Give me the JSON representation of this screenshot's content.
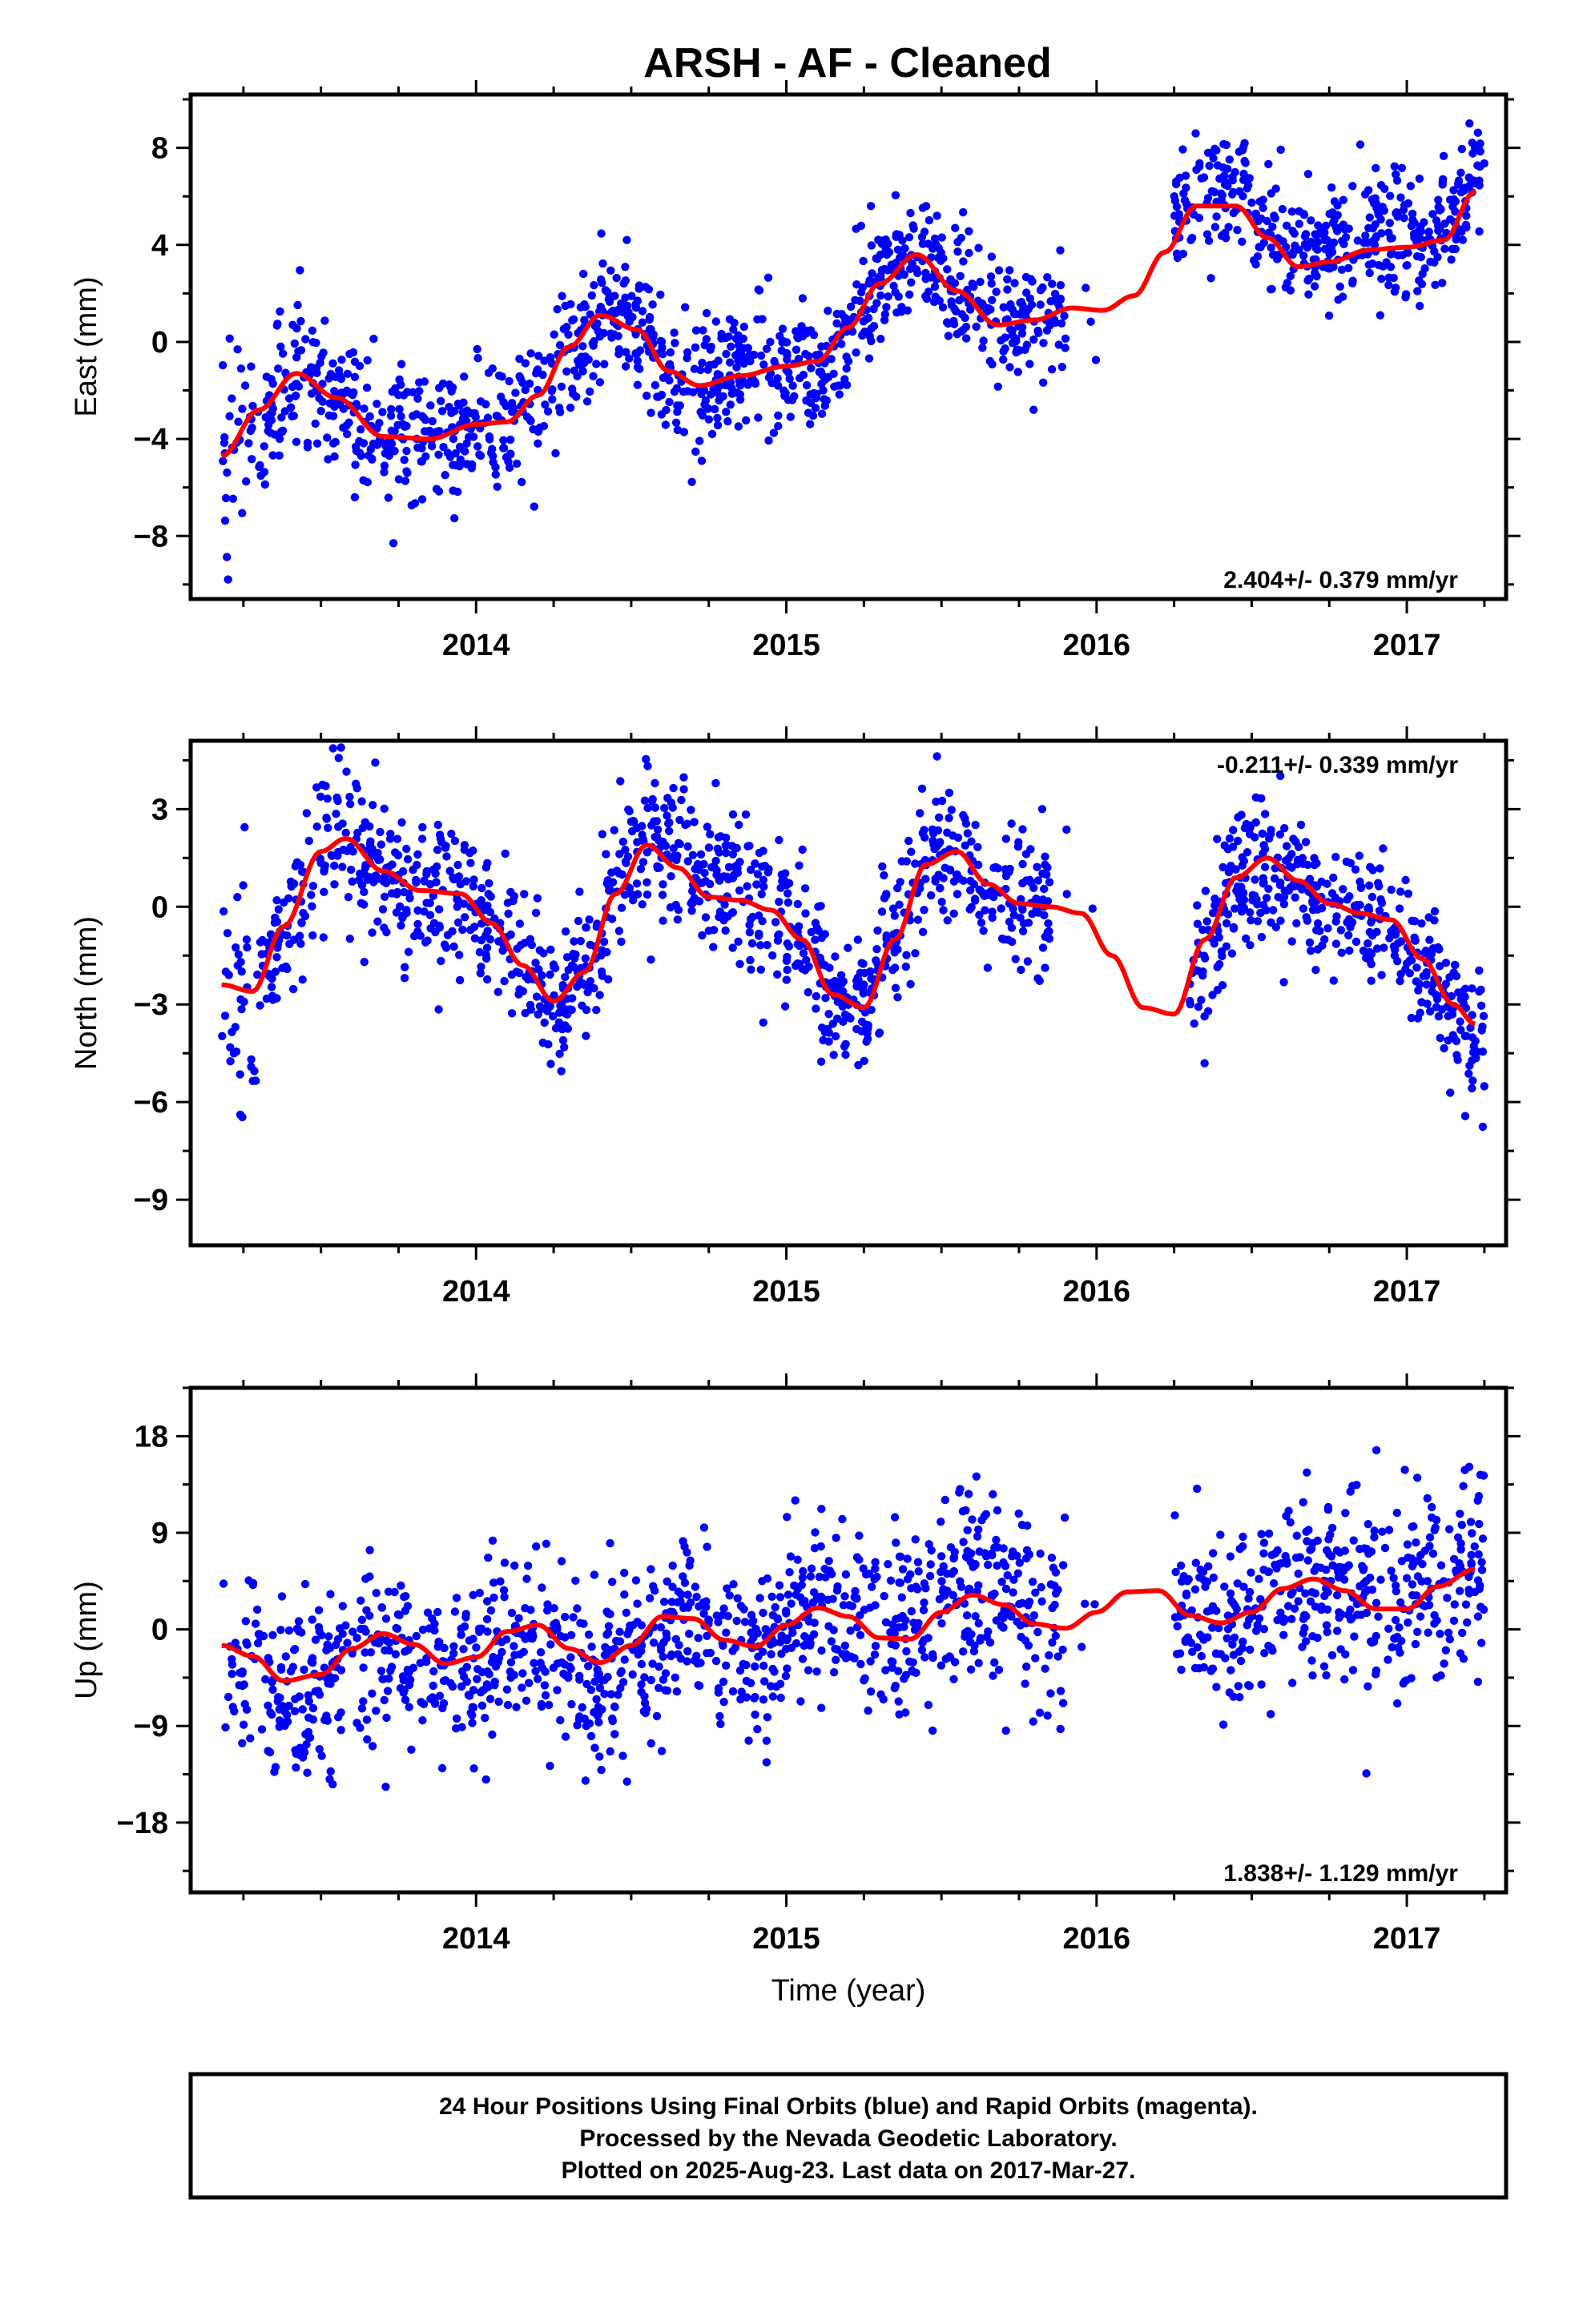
{
  "title": "ARSH  - AF - Cleaned",
  "footer": {
    "lines": [
      "24 Hour Positions Using Final Orbits (blue) and Rapid Orbits (magenta).",
      "Processed by the Nevada Geodetic Laboratory.",
      "Plotted on 2025-Aug-23. Last data on 2017-Mar-27."
    ]
  },
  "colors": {
    "points": "#0000ff",
    "fit": "#ff0000",
    "axis": "#000000",
    "background": "#ffffff"
  },
  "chart_data": [
    {
      "type": "scatter",
      "name": "east",
      "ylabel": "East (mm)",
      "xlabel": "",
      "xlim": [
        2013.08,
        2017.32
      ],
      "ylim": [
        -10.6,
        10.2
      ],
      "yticks": [
        -8,
        -4,
        0,
        4,
        8
      ],
      "xticks": [
        2014,
        2015,
        2016,
        2017
      ],
      "rate_text": "2.404+/- 0.379 mm/yr",
      "rate_position": "bottom-right",
      "fit": {
        "x": [
          2013.18,
          2013.3,
          2013.42,
          2013.55,
          2013.7,
          2013.85,
          2014.0,
          2014.1,
          2014.2,
          2014.3,
          2014.4,
          2014.52,
          2014.62,
          2014.72,
          2014.85,
          2015.0,
          2015.1,
          2015.2,
          2015.3,
          2015.42,
          2015.55,
          2015.68,
          2015.8,
          2015.92,
          2016.02,
          2016.12,
          2016.22,
          2016.32,
          2016.45,
          2016.55,
          2016.65,
          2016.75,
          2016.88,
          2017.0,
          2017.12,
          2017.22
        ],
        "y": [
          -4.7,
          -2.8,
          -1.3,
          -2.3,
          -3.9,
          -4.0,
          -3.4,
          -3.3,
          -2.2,
          -0.2,
          1.1,
          0.5,
          -1.2,
          -1.8,
          -1.4,
          -1.0,
          -0.8,
          0.6,
          2.4,
          3.6,
          2.1,
          0.7,
          0.9,
          1.4,
          1.3,
          1.9,
          3.7,
          5.6,
          5.6,
          4.3,
          3.1,
          3.3,
          3.8,
          3.9,
          4.2,
          6.2
        ]
      },
      "points": {
        "segments": [
          {
            "x0": 2013.18,
            "x1": 2013.32,
            "n": 40,
            "sd": 2.2,
            "yoff": 0.3
          },
          {
            "x0": 2013.32,
            "x1": 2014.35,
            "n": 420,
            "sd": 1.3,
            "yoff": 0
          },
          {
            "x0": 2014.35,
            "x1": 2015.0,
            "n": 280,
            "sd": 1.4,
            "yoff": 0
          },
          {
            "x0": 2015.0,
            "x1": 2015.9,
            "n": 380,
            "sd": 1.2,
            "yoff": 0
          },
          {
            "x0": 2015.95,
            "x1": 2016.0,
            "n": 3,
            "sd": 1.5,
            "yoff": 0
          },
          {
            "x0": 2016.25,
            "x1": 2017.25,
            "n": 420,
            "sd": 1.3,
            "yoff": 0.6
          }
        ]
      }
    },
    {
      "type": "scatter",
      "name": "north",
      "ylabel": "North (mm)",
      "xlabel": "",
      "xlim": [
        2013.08,
        2017.32
      ],
      "ylim": [
        -10.4,
        5.1
      ],
      "yticks": [
        -9,
        -6,
        -3,
        0,
        3
      ],
      "xticks": [
        2014,
        2015,
        2016,
        2017
      ],
      "rate_text": "-0.211+/- 0.339 mm/yr",
      "rate_position": "top-right",
      "fit": {
        "x": [
          2013.18,
          2013.28,
          2013.38,
          2013.5,
          2013.58,
          2013.7,
          2013.82,
          2013.95,
          2014.05,
          2014.15,
          2014.25,
          2014.35,
          2014.45,
          2014.55,
          2014.65,
          2014.75,
          2014.85,
          2014.95,
          2015.05,
          2015.15,
          2015.25,
          2015.35,
          2015.45,
          2015.55,
          2015.65,
          2015.75,
          2015.85,
          2015.95,
          2016.05,
          2016.15,
          2016.25,
          2016.35,
          2016.45,
          2016.55,
          2016.65,
          2016.75,
          2016.85,
          2016.95,
          2017.05,
          2017.15,
          2017.22
        ],
        "y": [
          -2.4,
          -2.6,
          -0.6,
          1.7,
          2.1,
          1.1,
          0.5,
          0.4,
          -0.5,
          -1.8,
          -2.9,
          -2.0,
          0.4,
          1.9,
          1.2,
          0.3,
          0.2,
          -0.1,
          -1.0,
          -2.7,
          -3.1,
          -1.0,
          1.3,
          1.7,
          0.7,
          0.1,
          0.0,
          -0.2,
          -1.5,
          -3.1,
          -3.3,
          -1.0,
          0.9,
          1.5,
          0.8,
          0.1,
          -0.2,
          -0.4,
          -1.6,
          -3.0,
          -3.6
        ]
      },
      "points": {
        "segments": [
          {
            "x0": 2013.18,
            "x1": 2013.3,
            "n": 35,
            "sd": 2.2,
            "yoff": -0.6
          },
          {
            "x0": 2013.3,
            "x1": 2014.35,
            "n": 420,
            "sd": 1.2,
            "yoff": 0
          },
          {
            "x0": 2014.35,
            "x1": 2015.0,
            "n": 280,
            "sd": 1.2,
            "yoff": 0.3
          },
          {
            "x0": 2015.0,
            "x1": 2015.85,
            "n": 360,
            "sd": 1.1,
            "yoff": 0
          },
          {
            "x0": 2015.9,
            "x1": 2016.0,
            "n": 3,
            "sd": 1.0,
            "yoff": 0
          },
          {
            "x0": 2016.3,
            "x1": 2017.25,
            "n": 420,
            "sd": 1.1,
            "yoff": -0.2
          }
        ]
      }
    },
    {
      "type": "scatter",
      "name": "up",
      "ylabel": "Up (mm)",
      "xlabel": "Time (year)",
      "xlim": [
        2013.08,
        2017.32
      ],
      "ylim": [
        -24.5,
        22.5
      ],
      "yticks": [
        -18,
        -9,
        0,
        9,
        18
      ],
      "xticks": [
        2014,
        2015,
        2016,
        2017
      ],
      "rate_text": "1.838+/- 1.129 mm/yr",
      "rate_position": "bottom-right",
      "fit": {
        "x": [
          2013.18,
          2013.28,
          2013.38,
          2013.5,
          2013.6,
          2013.7,
          2013.8,
          2013.9,
          2014.0,
          2014.1,
          2014.2,
          2014.3,
          2014.4,
          2014.5,
          2014.6,
          2014.7,
          2014.8,
          2014.9,
          2015.0,
          2015.1,
          2015.2,
          2015.3,
          2015.4,
          2015.5,
          2015.6,
          2015.7,
          2015.8,
          2015.9,
          2016.0,
          2016.1,
          2016.2,
          2016.3,
          2016.4,
          2016.5,
          2016.6,
          2016.7,
          2016.8,
          2016.9,
          2017.0,
          2017.1,
          2017.22
        ],
        "y": [
          -1.5,
          -2.5,
          -4.8,
          -4.2,
          -1.8,
          -0.4,
          -1.4,
          -3.2,
          -2.6,
          -0.2,
          0.4,
          -1.8,
          -3.1,
          -1.5,
          1.2,
          1.0,
          -1.0,
          -1.6,
          0.4,
          2.0,
          1.2,
          -0.8,
          -0.9,
          1.6,
          3.2,
          2.3,
          0.5,
          0.1,
          1.6,
          3.5,
          3.6,
          1.3,
          0.6,
          1.6,
          3.8,
          4.7,
          3.6,
          1.9,
          1.9,
          4.0,
          5.6
        ]
      },
      "points": {
        "segments": [
          {
            "x0": 2013.18,
            "x1": 2013.3,
            "n": 35,
            "sd": 5.0,
            "yoff": 0
          },
          {
            "x0": 2013.3,
            "x1": 2014.35,
            "n": 420,
            "sd": 4.0,
            "yoff": -1.0
          },
          {
            "x0": 2014.35,
            "x1": 2015.0,
            "n": 280,
            "sd": 4.0,
            "yoff": -1.2
          },
          {
            "x0": 2015.0,
            "x1": 2015.9,
            "n": 380,
            "sd": 4.5,
            "yoff": 1.0
          },
          {
            "x0": 2015.95,
            "x1": 2016.0,
            "n": 3,
            "sd": 3.0,
            "yoff": 0
          },
          {
            "x0": 2016.25,
            "x1": 2017.25,
            "n": 420,
            "sd": 4.5,
            "yoff": 0.5
          }
        ]
      }
    }
  ]
}
